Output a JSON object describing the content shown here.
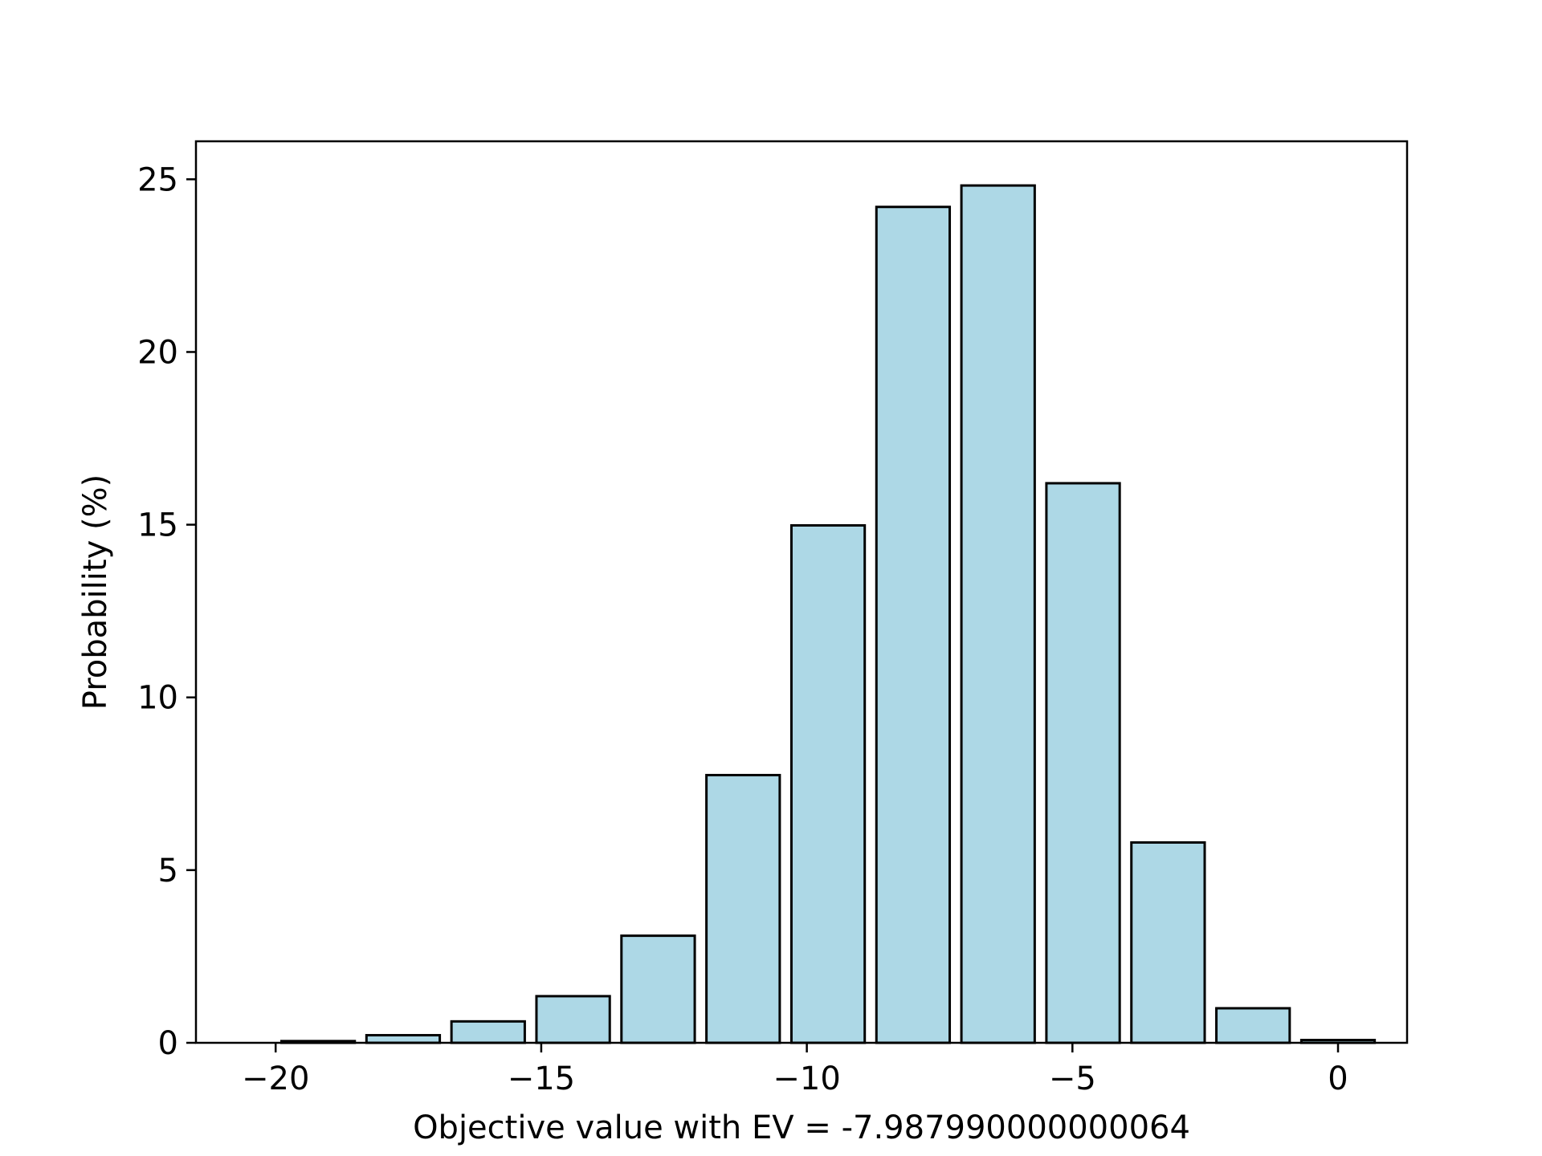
{
  "chart_data": {
    "type": "bar",
    "xlabel": "Objective value with EV = -7.987990000000064",
    "ylabel": "Probability (%)",
    "xlim": [
      -21.5,
      1.3
    ],
    "ylim": [
      0,
      26.1
    ],
    "x_ticks": [
      -20,
      -15,
      -10,
      -5,
      0
    ],
    "x_tick_labels": [
      "−20",
      "−15",
      "−10",
      "−5",
      "0"
    ],
    "y_ticks": [
      0,
      5,
      10,
      15,
      20,
      25
    ],
    "y_tick_labels": [
      "0",
      "5",
      "10",
      "15",
      "20",
      "25"
    ],
    "bar_width": 1.38,
    "x": [
      -19.2,
      -17.6,
      -16.0,
      -14.4,
      -12.8,
      -11.2,
      -9.6,
      -8.0,
      -6.4,
      -4.8,
      -3.2,
      -1.6,
      0.0
    ],
    "values": [
      0.05,
      0.22,
      0.62,
      1.35,
      3.1,
      7.75,
      14.98,
      24.2,
      24.82,
      16.2,
      5.8,
      1.0,
      0.08
    ],
    "bar_color": "#add8e6",
    "edge_color": "#000000",
    "grid": false,
    "legend": false
  }
}
